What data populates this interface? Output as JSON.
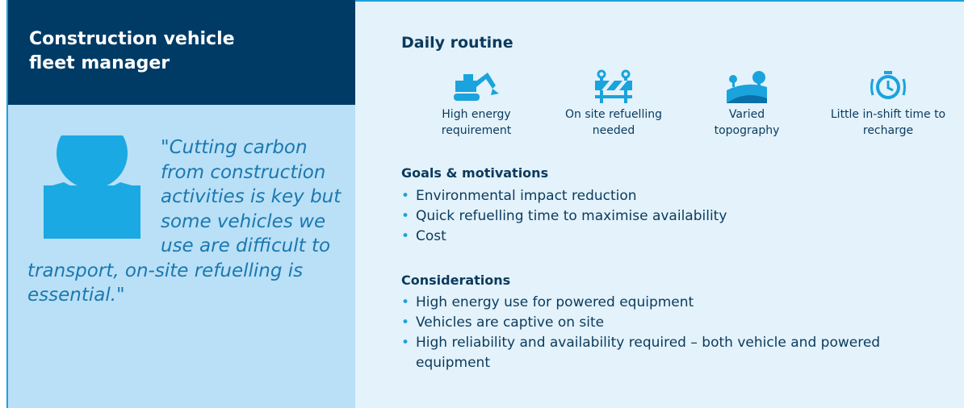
{
  "persona": {
    "title": "Construction vehicle fleet manager",
    "quote": "\"Cutting carbon from construction activities is key but some vehicles we use are difficult to transport, on-site refuelling is essential.\""
  },
  "daily_routine": {
    "heading": "Daily routine",
    "items": [
      "High energy requirement",
      "On site refuelling needed",
      "Varied topography",
      "Little in-shift time to recharge"
    ]
  },
  "goals": {
    "heading": "Goals & motivations",
    "items": [
      "Environmental impact reduction",
      "Quick refuelling time to maximise availability",
      "Cost"
    ]
  },
  "considerations": {
    "heading": "Considerations",
    "items": [
      "High energy use for powered equipment",
      "Vehicles are captive on site",
      "High reliability and availability required – both vehicle and powered equipment"
    ]
  }
}
